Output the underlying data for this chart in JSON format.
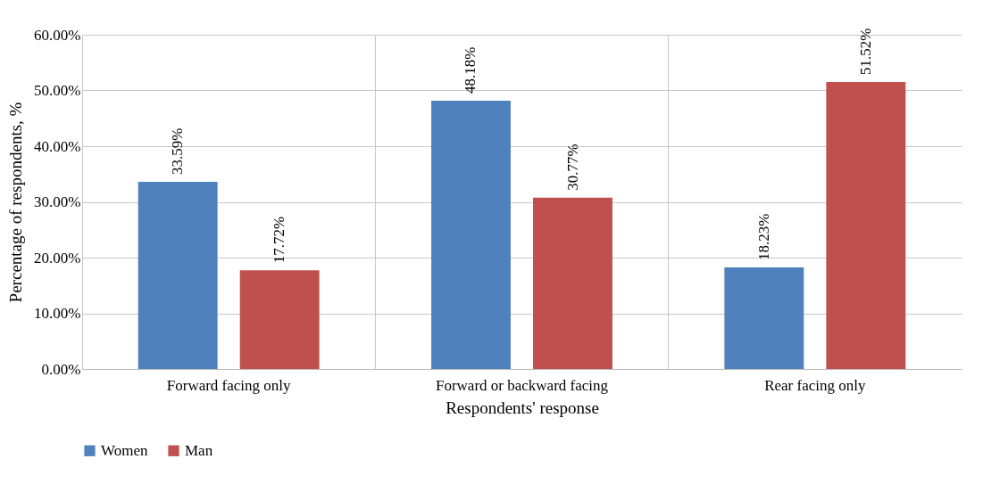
{
  "chart_data": {
    "type": "bar",
    "xlabel": "Respondents' response",
    "ylabel": "Percentage of respondents, %",
    "categories": [
      "Forward facing only",
      "Forward or backward facing",
      "Rear facing only"
    ],
    "series": [
      {
        "name": "Women",
        "color": "#4f81bd",
        "values": [
          33.59,
          48.18,
          18.23
        ],
        "value_labels": [
          "33.59%",
          "48.18%",
          "18.23%"
        ]
      },
      {
        "name": "Man",
        "color": "#c0504d",
        "values": [
          17.72,
          30.77,
          51.52
        ],
        "value_labels": [
          "17.72%",
          "30.77%",
          "51.52%"
        ]
      }
    ],
    "ylim": [
      0,
      60
    ],
    "yticks": [
      {
        "value": 0,
        "label": "0.00%"
      },
      {
        "value": 10,
        "label": "10.00%"
      },
      {
        "value": 20,
        "label": "20.00%"
      },
      {
        "value": 30,
        "label": "30.00%"
      },
      {
        "value": 40,
        "label": "40.00%"
      },
      {
        "value": 50,
        "label": "50.00%"
      },
      {
        "value": 60,
        "label": "60.00%"
      }
    ],
    "grid": true,
    "legend": "bottom"
  }
}
